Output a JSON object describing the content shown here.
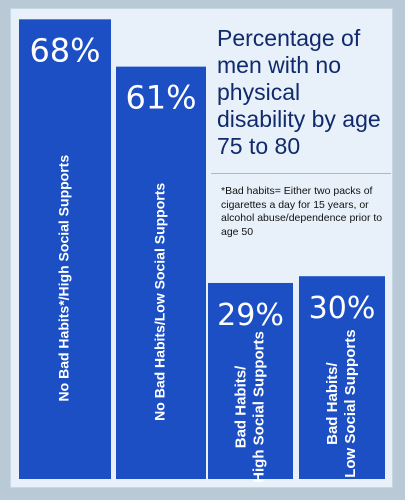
{
  "chart_data": {
    "type": "bar",
    "title": "Percentage of men with no physical disability by age 75 to 80",
    "footnote": "*Bad habits= Either two packs of cigarettes a day for 15 years, or alcohol abuse/dependence prior to age 50",
    "categories": [
      "No Bad Habits*/High Social Supports",
      "No Bad Habits/Low Social Supports",
      "Bad Habits/ High Social Supports",
      "Bad Habits/ Low Social Supports"
    ],
    "value_labels": [
      "68%",
      "61%",
      "29%",
      "30%"
    ],
    "values": [
      68,
      61,
      29,
      30
    ],
    "unit": "%",
    "ylim": [
      0,
      70
    ],
    "colors": {
      "bar": "#1c4fc4",
      "text_on_bar": "#ffffff",
      "title": "#102a6b"
    }
  }
}
